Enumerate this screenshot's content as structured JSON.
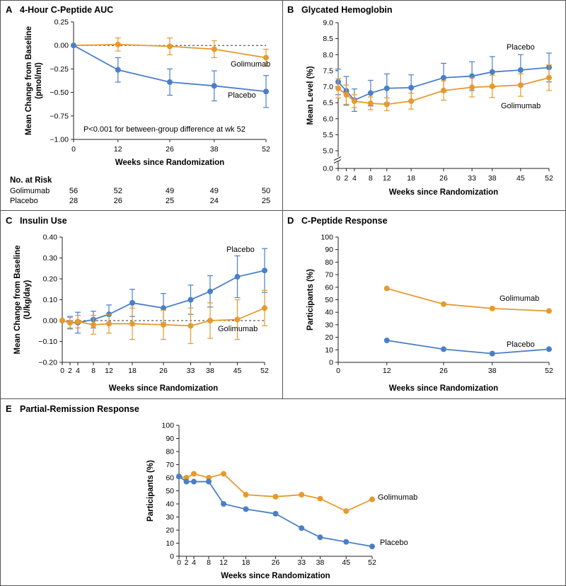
{
  "colors": {
    "golimumab": "#e69a2e",
    "placebo": "#4a7fc8",
    "frame": "#555555",
    "axis": "#222222"
  },
  "panels": [
    {
      "id": "A",
      "letter": "A",
      "title": "4-Hour C-Peptide AUC",
      "chart_data": {
        "type": "line",
        "title": "4-Hour C-Peptide AUC",
        "xlabel": "Weeks since Randomization",
        "ylabel": [
          "Mean Change from Baseline",
          "(pmol/ml)"
        ],
        "xlim": [
          0,
          52
        ],
        "ylim": [
          -1.0,
          0.25
        ],
        "xticks": [
          0,
          12,
          26,
          38,
          52
        ],
        "xtick_labels": [
          "0",
          "12",
          "26",
          "38",
          "52"
        ],
        "yticks": [
          -1.0,
          -0.75,
          -0.5,
          -0.25,
          0.0,
          0.25
        ],
        "ytick_labels": [
          "−1.00",
          "−0.75",
          "−0.50",
          "−0.25",
          "0.00",
          "0.25"
        ],
        "reference_line": 0,
        "annotation": "P<0.001 for between-group difference at wk 52",
        "series": [
          {
            "name": "Golimumab",
            "color": "#e69a2e",
            "x": [
              0,
              12,
              26,
              38,
              52
            ],
            "y": [
              0.0,
              0.01,
              -0.01,
              -0.04,
              -0.13
            ],
            "err": [
              0,
              0.07,
              0.09,
              0.09,
              0.09
            ]
          },
          {
            "name": "Placebo",
            "color": "#4a7fc8",
            "x": [
              0,
              12,
              26,
              38,
              52
            ],
            "y": [
              0.0,
              -0.26,
              -0.39,
              -0.43,
              -0.49
            ],
            "err": [
              0,
              0.13,
              0.14,
              0.16,
              0.17
            ]
          }
        ],
        "number_at_risk": {
          "header": "No. at Risk",
          "rows": [
            {
              "label": "Golimumab",
              "values": [
                "56",
                "52",
                "49",
                "49",
                "50"
              ]
            },
            {
              "label": "Placebo",
              "values": [
                "28",
                "26",
                "25",
                "24",
                "25"
              ]
            }
          ]
        }
      }
    },
    {
      "id": "B",
      "letter": "B",
      "title": "Glycated Hemoglobin",
      "chart_data": {
        "type": "line",
        "title": "Glycated Hemoglobin",
        "xlabel": "Weeks since Randomization",
        "ylabel": [
          "Mean Level (%)"
        ],
        "xlim": [
          0,
          52
        ],
        "ylim": [
          5.0,
          9.0
        ],
        "axis_break": true,
        "xticks": [
          0,
          2,
          4,
          8,
          12,
          18,
          26,
          33,
          38,
          45,
          52
        ],
        "xtick_labels": [
          "0",
          "2",
          "4",
          "8",
          "12",
          "18",
          "26",
          "33",
          "38",
          "45",
          "52"
        ],
        "yticks": [
          5.0,
          5.5,
          6.0,
          6.5,
          7.0,
          7.5,
          8.0,
          8.5,
          9.0
        ],
        "ytick_labels": [
          "5.0",
          "5.5",
          "6.0",
          "6.5",
          "7.0",
          "7.5",
          "8.0",
          "8.5",
          "9.0"
        ],
        "zero_label": "0.0",
        "series": [
          {
            "name": "Placebo",
            "color": "#4a7fc8",
            "x": [
              0,
              2,
              4,
              8,
              12,
              18,
              26,
              33,
              38,
              45,
              52
            ],
            "y": [
              7.15,
              6.87,
              6.58,
              6.8,
              6.95,
              6.97,
              7.28,
              7.33,
              7.46,
              7.52,
              7.6
            ],
            "err": [
              0.4,
              0.45,
              0.35,
              0.4,
              0.45,
              0.4,
              0.45,
              0.45,
              0.48,
              0.48,
              0.45
            ]
          },
          {
            "name": "Golimumab",
            "color": "#e69a2e",
            "x": [
              0,
              2,
              4,
              8,
              12,
              18,
              26,
              33,
              38,
              45,
              52
            ],
            "y": [
              6.95,
              6.75,
              6.55,
              6.48,
              6.45,
              6.55,
              6.88,
              6.98,
              7.01,
              7.05,
              7.28
            ],
            "err": [
              0.3,
              0.3,
              0.2,
              0.2,
              0.2,
              0.25,
              0.3,
              0.3,
              0.35,
              0.35,
              0.4
            ]
          }
        ]
      }
    },
    {
      "id": "C",
      "letter": "C",
      "title": "Insulin Use",
      "chart_data": {
        "type": "line",
        "title": "Insulin Use",
        "xlabel": "Weeks since Randomization",
        "ylabel": [
          "Mean Change from Baseline",
          "(U/kg/day)"
        ],
        "xlim": [
          0,
          52
        ],
        "ylim": [
          -0.2,
          0.4
        ],
        "xticks": [
          0,
          2,
          4,
          8,
          12,
          18,
          26,
          33,
          38,
          45,
          52
        ],
        "xtick_labels": [
          "0",
          "2",
          "4",
          "8",
          "12",
          "18",
          "26",
          "33",
          "38",
          "45",
          "52"
        ],
        "yticks": [
          -0.2,
          -0.1,
          0.0,
          0.1,
          0.2,
          0.3,
          0.4
        ],
        "ytick_labels": [
          "−0.20",
          "−0.10",
          "0.00",
          "0.10",
          "0.20",
          "0.30",
          "0.40"
        ],
        "reference_line": 0,
        "series": [
          {
            "name": "Placebo",
            "color": "#4a7fc8",
            "x": [
              0,
              2,
              4,
              8,
              12,
              18,
              26,
              33,
              38,
              45,
              52
            ],
            "y": [
              0.0,
              -0.01,
              -0.01,
              0.005,
              0.03,
              0.085,
              0.06,
              0.1,
              0.14,
              0.21,
              0.24
            ],
            "err": [
              0,
              0.03,
              0.05,
              0.04,
              0.045,
              0.065,
              0.07,
              0.07,
              0.075,
              0.1,
              0.105
            ]
          },
          {
            "name": "Golimumab",
            "color": "#e69a2e",
            "x": [
              0,
              2,
              4,
              8,
              12,
              18,
              26,
              33,
              38,
              45,
              52
            ],
            "y": [
              0.0,
              -0.01,
              -0.005,
              -0.02,
              -0.015,
              -0.015,
              -0.02,
              -0.025,
              0.0,
              0.005,
              0.06
            ],
            "err": [
              0,
              0.025,
              0.03,
              0.045,
              0.045,
              0.075,
              0.07,
              0.085,
              0.085,
              0.095,
              0.085
            ]
          }
        ]
      }
    },
    {
      "id": "D",
      "letter": "D",
      "title": "C-Peptide Response",
      "chart_data": {
        "type": "line",
        "title": "C-Peptide Response",
        "xlabel": "Weeks since Randomization",
        "ylabel": [
          "Participants (%)"
        ],
        "xlim": [
          0,
          52
        ],
        "ylim": [
          0,
          100
        ],
        "xticks": [
          0,
          12,
          26,
          38,
          52
        ],
        "xtick_labels": [
          "0",
          "12",
          "26",
          "38",
          "52"
        ],
        "yticks": [
          0,
          10,
          20,
          30,
          40,
          50,
          60,
          70,
          80,
          90,
          100
        ],
        "ytick_labels": [
          "0",
          "10",
          "20",
          "30",
          "40",
          "50",
          "60",
          "70",
          "80",
          "90",
          "100"
        ],
        "series": [
          {
            "name": "Golimumab",
            "color": "#e69a2e",
            "x": [
              12,
              26,
              38,
              52
            ],
            "y": [
              59,
              46.5,
              43,
              41
            ]
          },
          {
            "name": "Placebo",
            "color": "#4a7fc8",
            "x": [
              12,
              26,
              38,
              52
            ],
            "y": [
              17.5,
              10.5,
              7,
              10.5
            ]
          }
        ]
      }
    },
    {
      "id": "E",
      "letter": "E",
      "title": "Partial-Remission Response",
      "chart_data": {
        "type": "line",
        "title": "Partial-Remission Response",
        "xlabel": "Weeks since Randomization",
        "ylabel": [
          "Participants (%)"
        ],
        "xlim": [
          0,
          52
        ],
        "ylim": [
          0,
          100
        ],
        "xticks": [
          0,
          2,
          4,
          8,
          12,
          18,
          26,
          33,
          38,
          45,
          52
        ],
        "xtick_labels": [
          "0",
          "2",
          "4",
          "8",
          "12",
          "18",
          "26",
          "33",
          "38",
          "45",
          "52"
        ],
        "yticks": [
          0,
          10,
          20,
          30,
          40,
          50,
          60,
          70,
          80,
          90,
          100
        ],
        "ytick_labels": [
          "0",
          "10",
          "20",
          "30",
          "40",
          "50",
          "60",
          "70",
          "80",
          "90",
          "100"
        ],
        "series": [
          {
            "name": "Golimumab",
            "color": "#e69a2e",
            "x": [
              0,
              2,
              4,
              8,
              12,
              18,
              26,
              33,
              38,
              45,
              52
            ],
            "y": [
              61,
              60,
              63,
              60,
              63,
              47,
              45.5,
              47,
              44,
              34.5,
              43.5
            ]
          },
          {
            "name": "Placebo",
            "color": "#4a7fc8",
            "x": [
              0,
              2,
              4,
              8,
              12,
              18,
              26,
              33,
              38,
              45,
              52
            ],
            "y": [
              61,
              57,
              57,
              57,
              40,
              36,
              32.5,
              21.5,
              14.5,
              11,
              7.5
            ]
          }
        ]
      }
    }
  ]
}
